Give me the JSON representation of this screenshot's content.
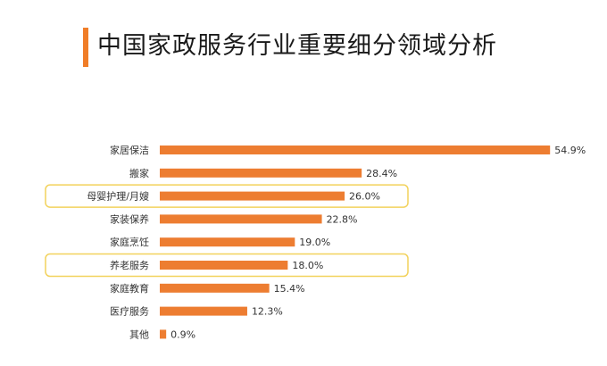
{
  "title": "中国家政服务行业重要细分领域分析",
  "colors": {
    "accent": "#f07d28",
    "bar": "#ed7d31",
    "highlight_border": "#f2d25c"
  },
  "chart_data": {
    "type": "bar",
    "orientation": "horizontal",
    "title": "",
    "xlabel": "",
    "ylabel": "",
    "xlim": [
      0,
      55
    ],
    "grid": false,
    "legend": "none",
    "categories": [
      "家居保洁",
      "搬家",
      "母婴护理/月嫂",
      "家装保养",
      "家庭烹饪",
      "养老服务",
      "家庭教育",
      "医疗服务",
      "其他"
    ],
    "values": [
      54.9,
      28.4,
      26.0,
      22.8,
      19.0,
      18.0,
      15.4,
      12.3,
      0.9
    ],
    "value_labels": [
      "54.9%",
      "28.4%",
      "26.0%",
      "22.8%",
      "19.0%",
      "18.0%",
      "15.4%",
      "12.3%",
      "0.9%"
    ],
    "highlighted_categories": [
      "母婴护理/月嫂",
      "养老服务"
    ]
  }
}
